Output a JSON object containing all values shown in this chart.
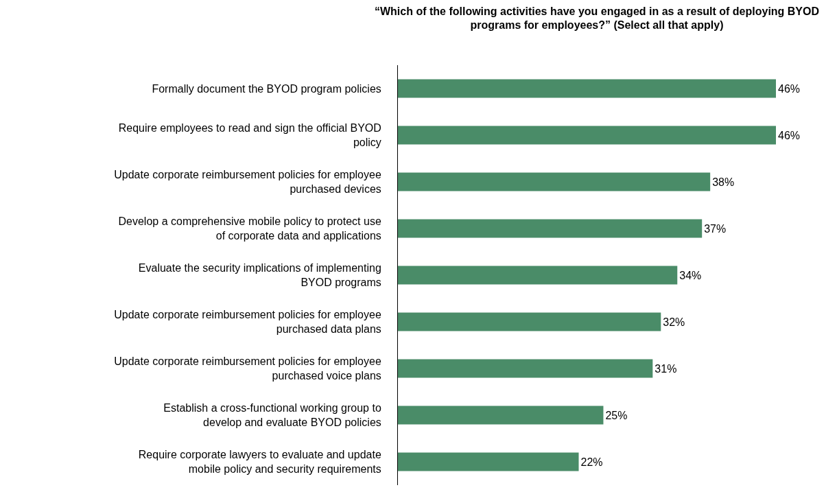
{
  "chart_data": {
    "type": "bar",
    "orientation": "horizontal",
    "title": "“Which of the following activities have you engaged in as a result of deploying BYOD programs for employees?” (Select all that apply)",
    "categories": [
      "Formally document the BYOD program policies",
      "Require employees to read and sign the official BYOD policy",
      "Update corporate reimbursement policies for employee purchased devices",
      "Develop a comprehensive mobile policy to protect use of corporate data and applications",
      "Evaluate the security implications of implementing BYOD programs",
      "Update corporate reimbursement policies for employee purchased data plans",
      "Update corporate reimbursement policies for employee purchased voice plans",
      "Establish a cross-functional working group to develop and evaluate BYOD policies",
      "Require corporate lawyers to evaluate and update mobile policy and security requirements"
    ],
    "values": [
      46,
      46,
      38,
      37,
      34,
      32,
      31,
      25,
      22
    ],
    "value_labels": [
      "46%",
      "46%",
      "38%",
      "37%",
      "34%",
      "32%",
      "31%",
      "25%",
      "22%"
    ],
    "color": "#4a8c68",
    "tick_labels": "y",
    "legend": false
  }
}
